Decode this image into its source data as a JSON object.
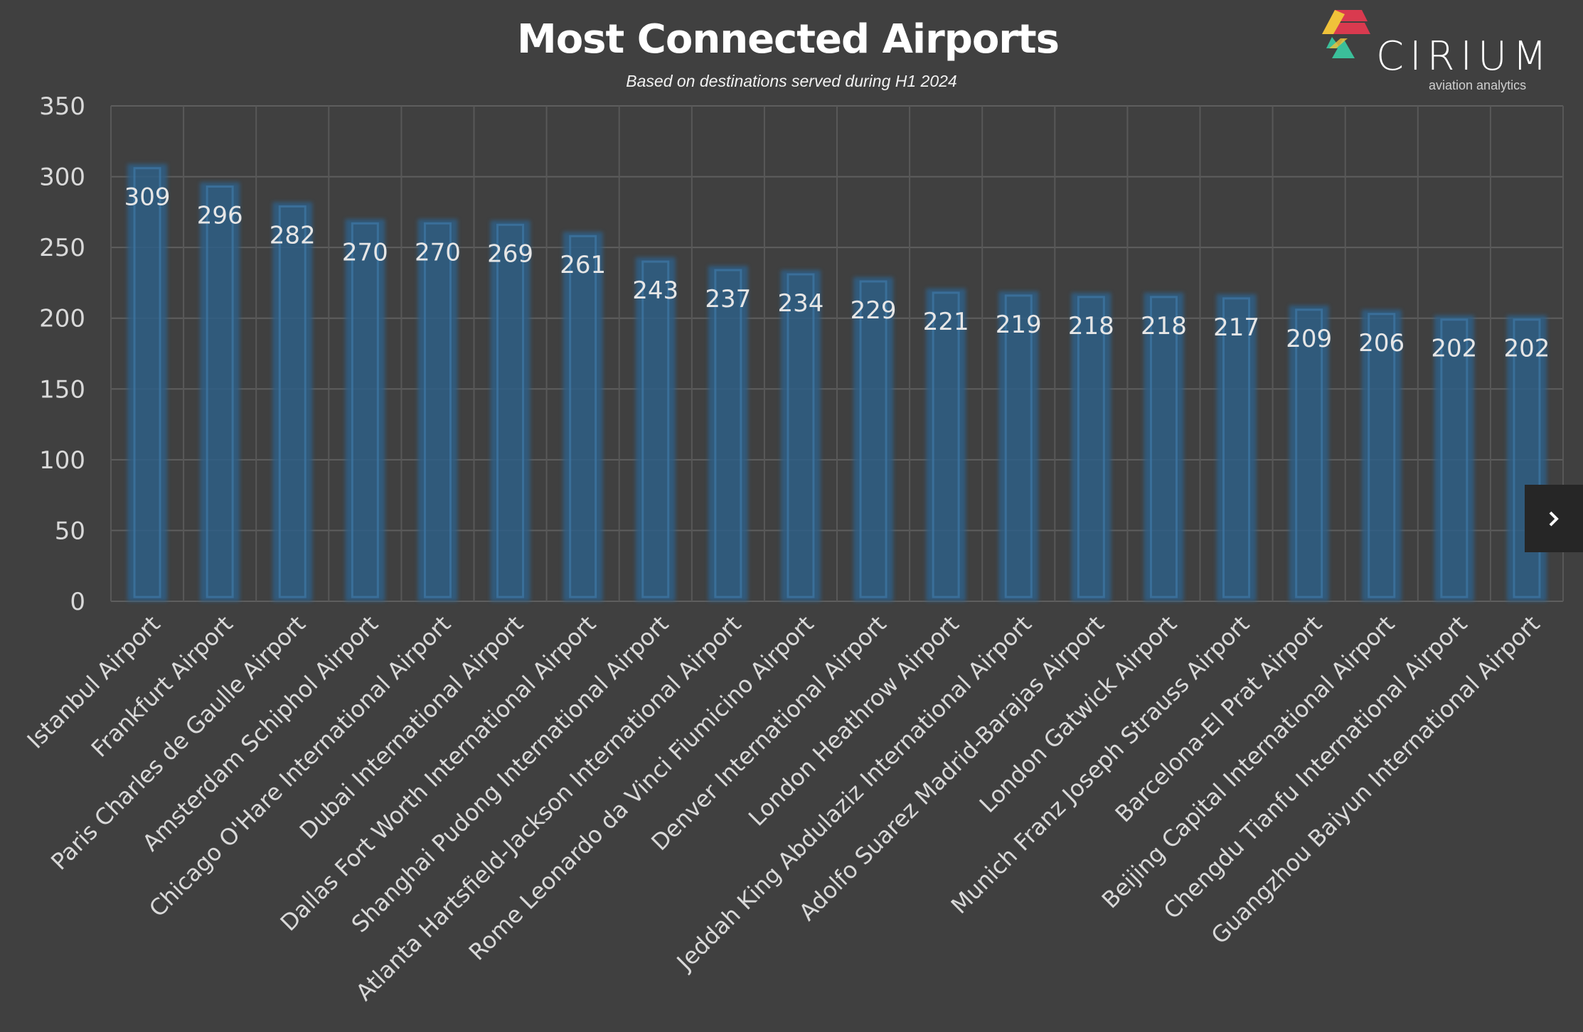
{
  "chart_data": {
    "type": "bar",
    "title": "Most Connected Airports",
    "subtitle": "Based on destinations served during H1 2024",
    "xlabel": "",
    "ylabel": "",
    "ylim": [
      0,
      350
    ],
    "yticks": [
      0,
      50,
      100,
      150,
      200,
      250,
      300,
      350
    ],
    "grid": true,
    "categories": [
      "Istanbul Airport",
      "Frankfurt Airport",
      "Paris Charles de Gaulle Airport",
      "Amsterdam Schiphol Airport",
      "Chicago O'Hare International Airport",
      "Dubai International Airport",
      "Dallas Fort Worth International Airport",
      "Shanghai Pudong International Airport",
      "Atlanta Hartsfield-Jackson International Airport",
      "Rome Leonardo da Vinci Fiumicino Airport",
      "Denver International Airport",
      "London Heathrow Airport",
      "Jeddah King Abdulaziz International Airport",
      "Adolfo Suarez Madrid-Barajas Airport",
      "London Gatwick Airport",
      "Munich Franz Joseph Strauss Airport",
      "Barcelona-El Prat Airport",
      "Beijing Capital International Airport",
      "Chengdu Tianfu International Airport",
      "Guangzhou Baiyun International Airport"
    ],
    "values": [
      309,
      296,
      282,
      270,
      270,
      269,
      261,
      243,
      237,
      234,
      229,
      221,
      219,
      218,
      218,
      217,
      209,
      206,
      202,
      202
    ],
    "bar_color": "#2f5f86",
    "background": "#404040"
  },
  "logo": {
    "name": "CIRIUM",
    "tagline": "aviation analytics"
  },
  "nav": {
    "next_icon": "chevron-right-icon"
  }
}
